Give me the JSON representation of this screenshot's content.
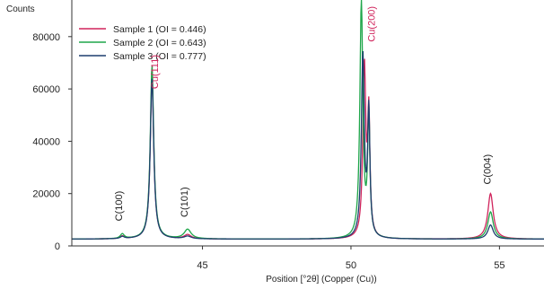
{
  "chart_data": {
    "type": "line",
    "ylabel": "Counts",
    "xlabel": "Position [°2θ] (Copper (Cu))",
    "xlim": [
      40.6,
      56.5
    ],
    "ylim": [
      0,
      94000
    ],
    "xticks": [
      45,
      50,
      55
    ],
    "yticks": [
      0,
      20000,
      40000,
      60000,
      80000
    ],
    "grid": false,
    "legend_position": "top-left",
    "baseline": 2600,
    "series": [
      {
        "name": "Sample 1 (OI = 0.446)",
        "color": "#d0245c",
        "peaks": [
          {
            "x": 42.3,
            "y": 3600
          },
          {
            "x": 43.3,
            "y": 65000
          },
          {
            "x": 44.5,
            "y": 4200
          },
          {
            "x": 50.45,
            "y": 68500
          },
          {
            "x": 50.6,
            "y": 48000
          },
          {
            "x": 54.7,
            "y": 20000
          }
        ]
      },
      {
        "name": "Sample 2 (OI = 0.643)",
        "color": "#1fa64a",
        "peaks": [
          {
            "x": 42.3,
            "y": 4400
          },
          {
            "x": 43.3,
            "y": 69000
          },
          {
            "x": 44.5,
            "y": 6200
          },
          {
            "x": 50.35,
            "y": 93500
          },
          {
            "x": 50.6,
            "y": 49000
          },
          {
            "x": 54.7,
            "y": 13000
          }
        ]
      },
      {
        "name": "Sample 3 (OI = 0.777)",
        "color": "#1d3f6e",
        "peaks": [
          {
            "x": 42.3,
            "y": 3400
          },
          {
            "x": 43.3,
            "y": 64000
          },
          {
            "x": 44.5,
            "y": 3600
          },
          {
            "x": 50.4,
            "y": 72500
          },
          {
            "x": 50.6,
            "y": 50000
          },
          {
            "x": 54.7,
            "y": 8000
          }
        ]
      }
    ],
    "annotations": [
      {
        "text": "Cu(111)",
        "x": 43.5,
        "y": 60000,
        "color": "#d0245c",
        "rotate": true
      },
      {
        "text": "Cu(200)",
        "x": 50.8,
        "y": 78000,
        "color": "#d0245c",
        "rotate": true
      },
      {
        "text": "C(100)",
        "x": 42.3,
        "y": 9500,
        "color": "#222222",
        "rotate": true
      },
      {
        "text": "C(101)",
        "x": 44.5,
        "y": 11000,
        "color": "#222222",
        "rotate": true
      },
      {
        "text": "C(004)",
        "x": 54.7,
        "y": 23500,
        "color": "#222222",
        "rotate": true
      }
    ]
  }
}
